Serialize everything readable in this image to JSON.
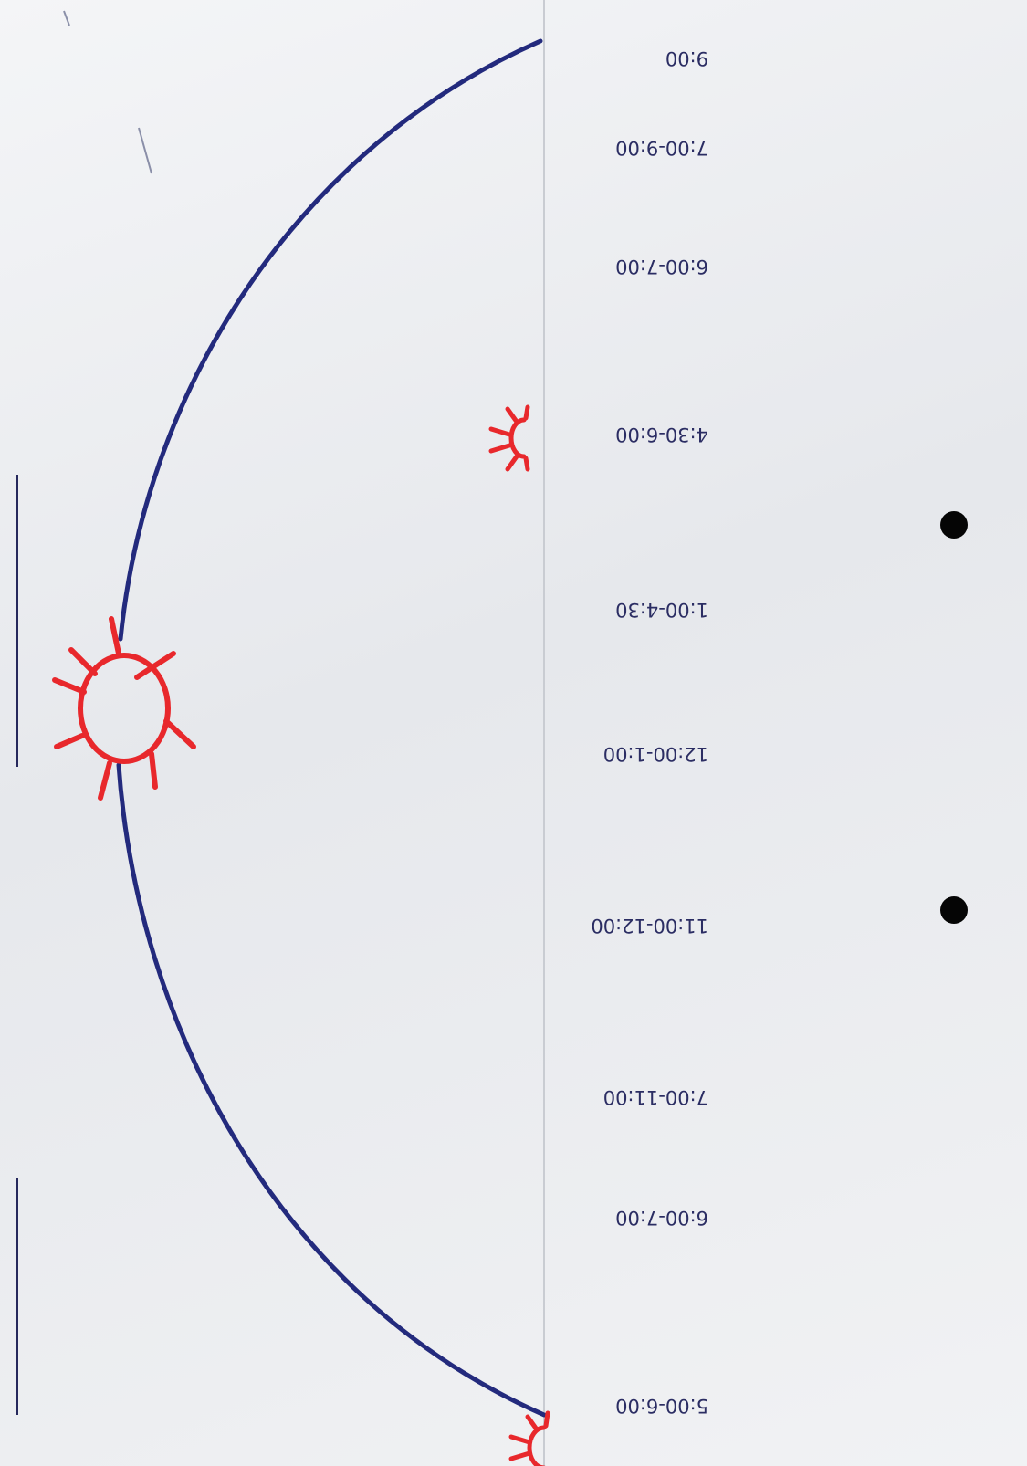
{
  "schedule": [
    {
      "time": "5:00-6:00",
      "activity": ""
    },
    {
      "time": "6:00-7:00",
      "activity": ""
    },
    {
      "time": "7:00-11:00",
      "activity": ""
    },
    {
      "time": "11:00-12:00",
      "activity": ""
    },
    {
      "time": "12:00-1:00",
      "activity": ""
    },
    {
      "time": "1:00-4:30",
      "activity": ""
    },
    {
      "time": "4:30-6:00",
      "activity": ""
    },
    {
      "time": "6:00-7:00",
      "activity": ""
    },
    {
      "time": "7:00-9:00",
      "activity": ""
    },
    {
      "time": "9:00",
      "activity": ""
    }
  ],
  "colors": {
    "arc": "#232a7d",
    "sun": "#e8282c",
    "ink": "#2b2d63"
  },
  "icons": [
    "sun-icon",
    "punch-hole"
  ]
}
